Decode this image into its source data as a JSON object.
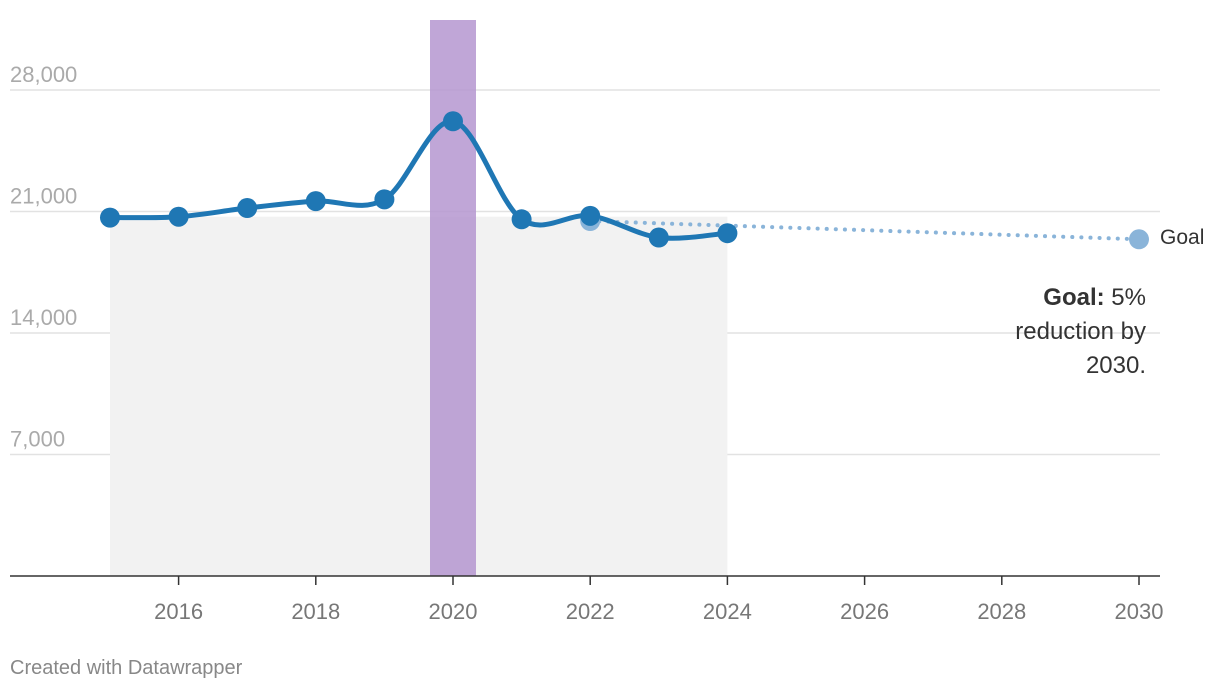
{
  "chart_data": {
    "type": "line",
    "x_range": [
      2014.4,
      2030.3
    ],
    "ylim": [
      0,
      30000
    ],
    "y_ticks": [
      7000,
      14000,
      21000,
      28000
    ],
    "y_tick_labels": [
      "7,000",
      "14,000",
      "21,000",
      "28,000"
    ],
    "x_ticks": [
      2016,
      2018,
      2020,
      2022,
      2024,
      2026,
      2028,
      2030
    ],
    "x_tick_labels": [
      "2016",
      "2018",
      "2020",
      "2022",
      "2024",
      "2026",
      "2028",
      "2030"
    ],
    "grid": true,
    "highlight_band": {
      "year": 2020,
      "color": "#b596d0"
    },
    "shaded_region": {
      "from": 2015,
      "to": 2024,
      "color": "#f2f2f2"
    },
    "series": [
      {
        "values": [
          {
            "x": 2015,
            "y": 20650
          },
          {
            "x": 2016,
            "y": 20700
          },
          {
            "x": 2017,
            "y": 21200
          },
          {
            "x": 2018,
            "y": 21600
          },
          {
            "x": 2019,
            "y": 21700
          },
          {
            "x": 2020,
            "y": 26200
          },
          {
            "x": 2021,
            "y": 20550
          },
          {
            "x": 2022,
            "y": 20750
          },
          {
            "x": 2023,
            "y": 19500
          },
          {
            "x": 2024,
            "y": 19750
          }
        ],
        "color": "#1f77b4"
      },
      {
        "name": "Goal",
        "values": [
          {
            "x": 2022,
            "y": 20450
          },
          {
            "x": 2030,
            "y": 19400
          }
        ],
        "color": "#8ab4d9",
        "style": "dotted"
      }
    ],
    "annotation": {
      "bold": "Goal:",
      "lines": [
        "5%",
        "reduction by",
        "2030."
      ]
    }
  },
  "footer": {
    "credit": "Created with Datawrapper"
  }
}
